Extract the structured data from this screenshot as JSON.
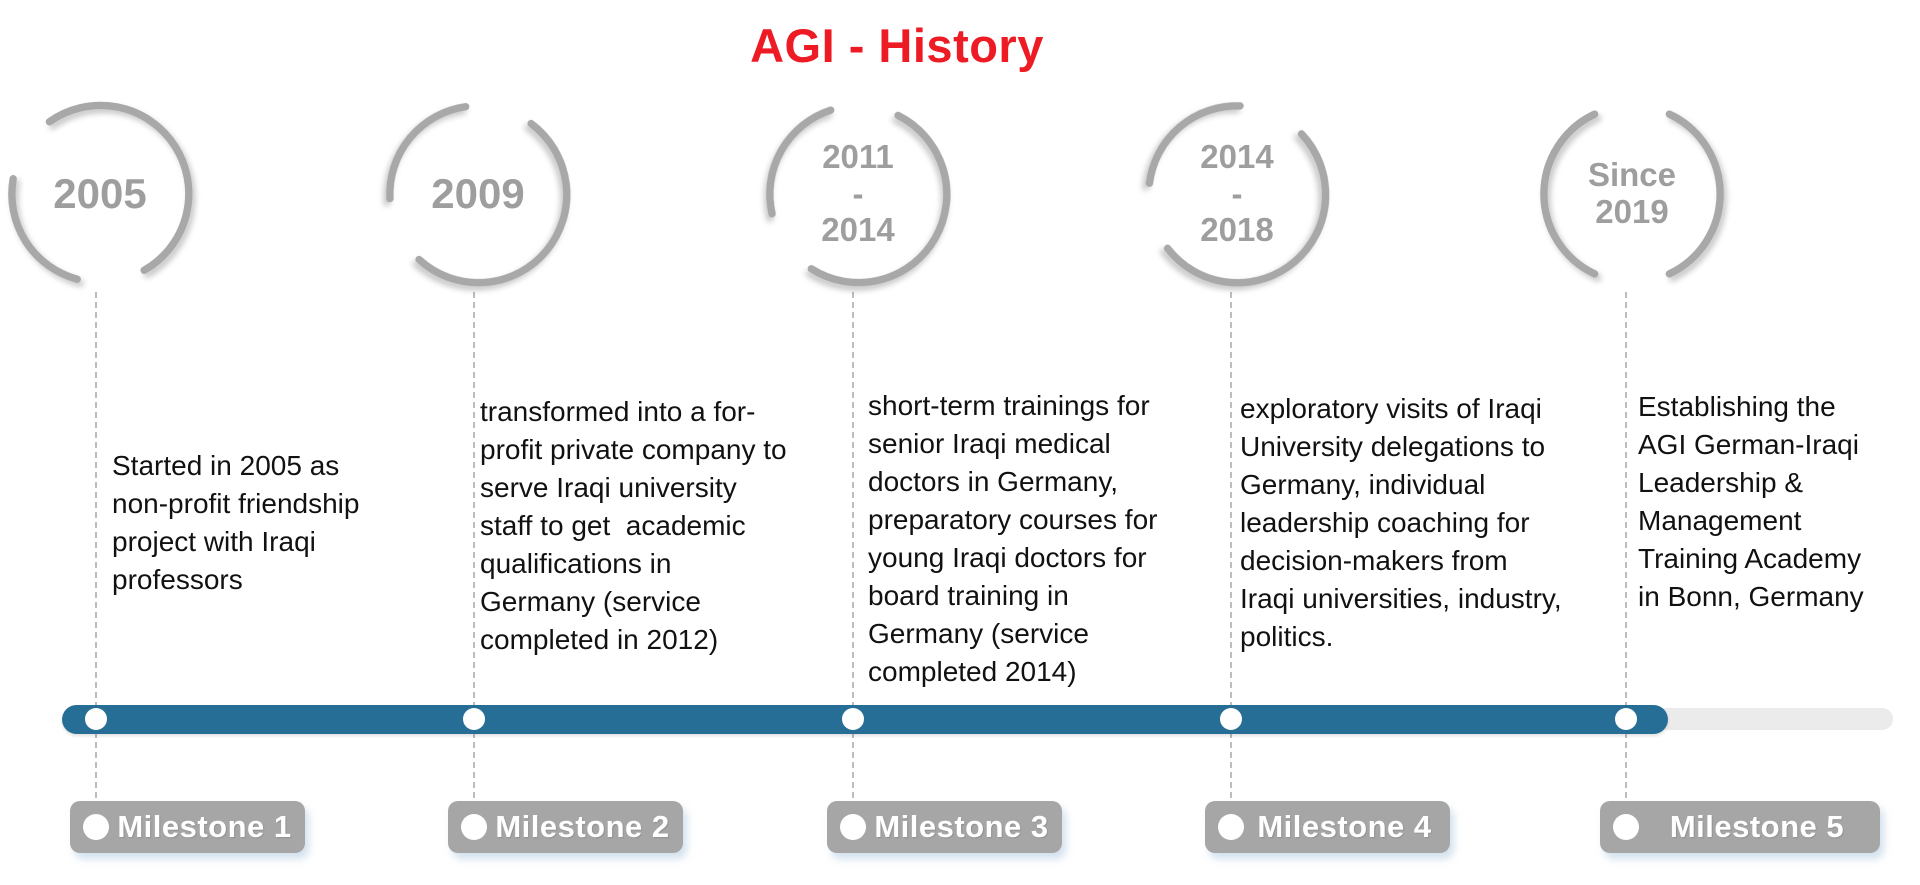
{
  "title": "AGI - History",
  "colors": {
    "title_red": "#ed1c24",
    "timeline_blue": "#276e96",
    "timeline_track_gray": "#ebebeb",
    "milestone_label_bg": "#a6a6a6",
    "circle_stroke_gray": "#a8a8a8",
    "year_text_gray": "#9e9e9e",
    "description_text": "#111111"
  },
  "milestones": [
    {
      "year": "2005",
      "description": "Started in 2005 as\nnon-profit friendship\nproject with Iraqi\nprofessors",
      "label": "Milestone 1"
    },
    {
      "year": "2009",
      "description": "transformed into a for-\nprofit private company to\nserve Iraqi university\nstaff to get  academic\nqualifications in\nGermany (service\ncompleted in 2012)",
      "label": "Milestone 2"
    },
    {
      "year": "2011\n-\n2014",
      "description": "short-term trainings for\nsenior Iraqi medical\ndoctors in Germany,\npreparatory courses for\nyoung Iraqi doctors for\nboard training in\nGermany (service\ncompleted 2014)",
      "label": "Milestone 3"
    },
    {
      "year": "2014\n-\n2018",
      "description": "exploratory visits of Iraqi\nUniversity delegations to\nGermany, individual\nleadership coaching for\ndecision-makers from\nIraqi universities, industry,\npolitics.",
      "label": "Milestone 4"
    },
    {
      "year": "Since\n2019",
      "description": "Establishing the\nAGI German-Iraqi\nLeadership &\nManagement\nTraining Academy\nin Bonn, Germany",
      "label": "Milestone 5"
    }
  ]
}
